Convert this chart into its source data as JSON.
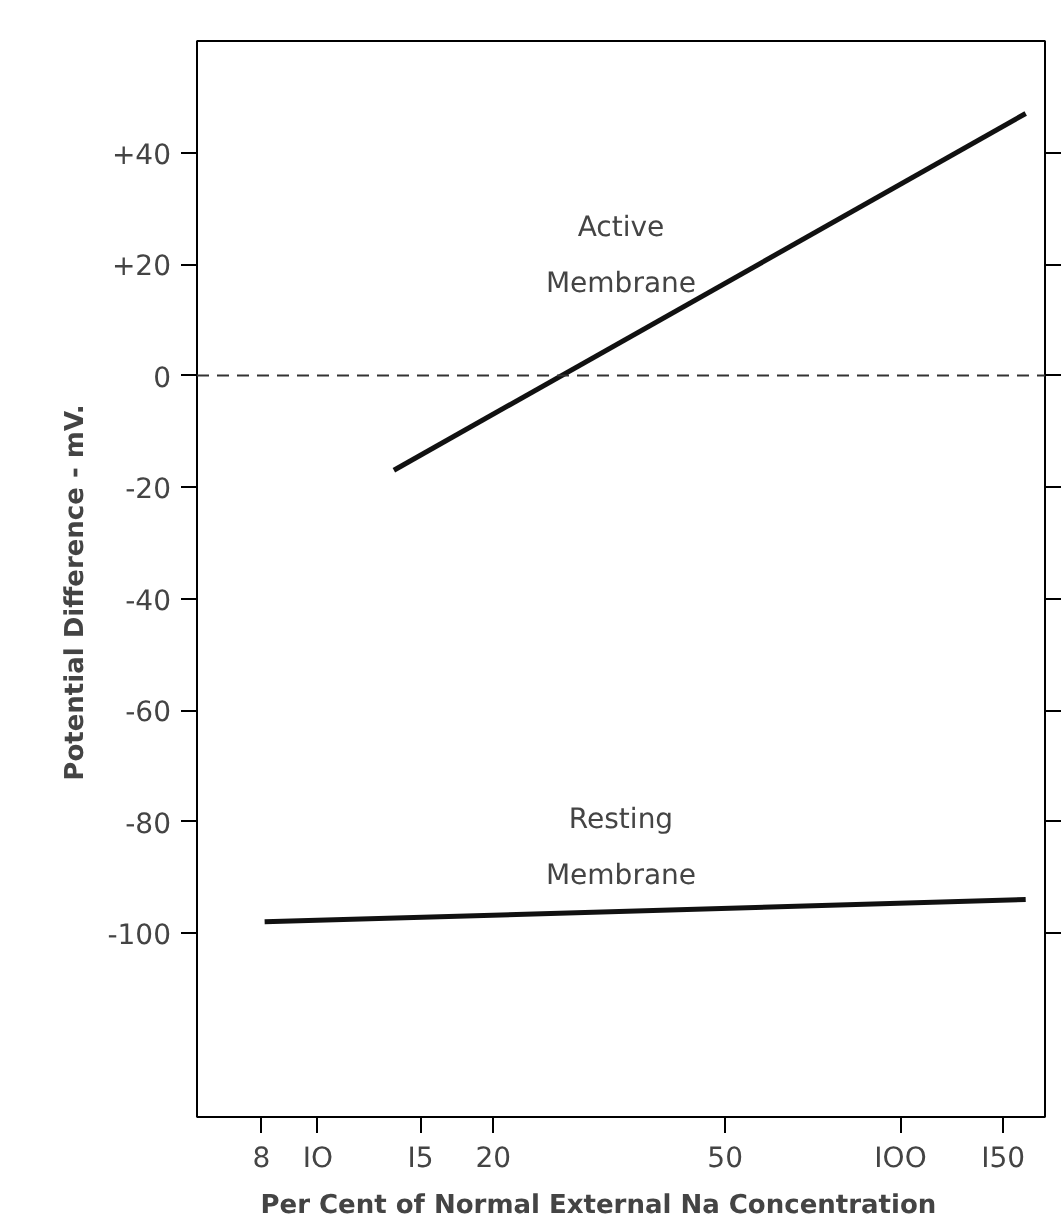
{
  "chart_data": {
    "type": "line",
    "xlabel": "Per Cent  of  Normal  External  Na  Concentration",
    "ylabel": "Potential  Difference  -  mV.",
    "log": "x",
    "xlim": [
      6.2,
      177
    ],
    "ylim": [
      -133,
      60
    ],
    "xticks": [
      8,
      {
        "value": 10,
        "label": "IO"
      },
      {
        "value": 15,
        "label": "I5"
      },
      20,
      50,
      {
        "value": 100,
        "label": "IOO"
      },
      {
        "value": 150,
        "label": "I50"
      }
    ],
    "yticks": [
      {
        "value": 40,
        "label": "+40"
      },
      {
        "value": 20,
        "label": "+20"
      },
      0,
      -20,
      -40,
      -60,
      -80,
      -100
    ],
    "series": [
      {
        "x": [
          13.5,
          164
        ],
        "values": [
          -17,
          47
        ],
        "color": "#111111"
      },
      {
        "x": [
          8.1,
          164
        ],
        "values": [
          -98,
          -94
        ],
        "color": "#111111"
      }
    ],
    "ref_lines": [
      {
        "axis": "y",
        "value": 0,
        "line_style": "dashed",
        "color": "#333333"
      }
    ],
    "annotations": [
      "Active\nMembrane",
      "Resting\nMembrane"
    ],
    "grid": false
  }
}
